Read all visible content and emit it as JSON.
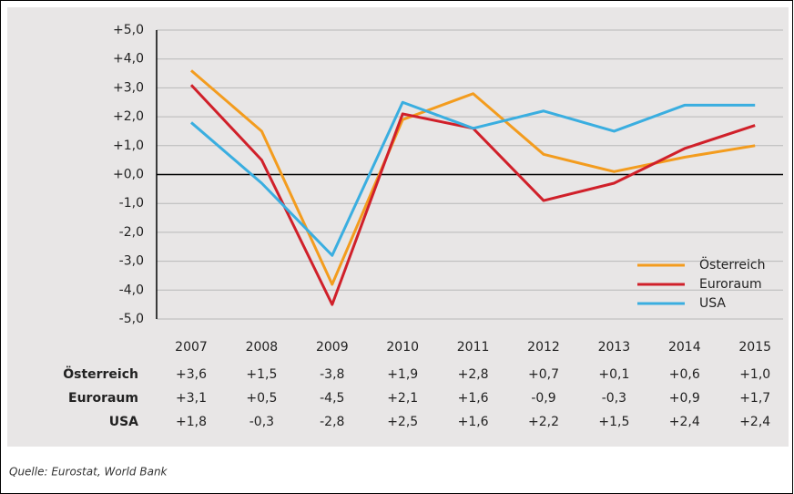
{
  "chart_data": {
    "type": "line",
    "categories": [
      "2007",
      "2008",
      "2009",
      "2010",
      "2011",
      "2012",
      "2013",
      "2014",
      "2015"
    ],
    "series": [
      {
        "name": "Österreich",
        "color": "#f39c1e",
        "values": [
          3.6,
          1.5,
          -3.8,
          1.9,
          2.8,
          0.7,
          0.1,
          0.6,
          1.0
        ],
        "value_labels": [
          "+3,6",
          "+1,5",
          "-3,8",
          "+1,9",
          "+2,8",
          "+0,7",
          "+0,1",
          "+0,6",
          "+1,0"
        ]
      },
      {
        "name": "Euroraum",
        "color": "#d0202a",
        "values": [
          3.1,
          0.5,
          -4.5,
          2.1,
          1.6,
          -0.9,
          -0.3,
          0.9,
          1.7
        ],
        "value_labels": [
          "+3,1",
          "+0,5",
          "-4,5",
          "+2,1",
          "+1,6",
          "-0,9",
          "-0,3",
          "+0,9",
          "+1,7"
        ]
      },
      {
        "name": "USA",
        "color": "#3aaee0",
        "values": [
          1.8,
          -0.3,
          -2.8,
          2.5,
          1.6,
          2.2,
          1.5,
          2.4,
          2.4
        ],
        "value_labels": [
          "+1,8",
          "-0,3",
          "-2,8",
          "+2,5",
          "+1,6",
          "+2,2",
          "+1,5",
          "+2,4",
          "+2,4"
        ]
      }
    ],
    "ylim": [
      -5,
      5
    ],
    "yticks": [
      {
        "value": 5,
        "label": "+5,0"
      },
      {
        "value": 4,
        "label": "+4,0"
      },
      {
        "value": 3,
        "label": "+3,0"
      },
      {
        "value": 2,
        "label": "+2,0"
      },
      {
        "value": 1,
        "label": "+1,0"
      },
      {
        "value": 0,
        "label": "+0,0"
      },
      {
        "value": -1,
        "label": "-1,0"
      },
      {
        "value": -2,
        "label": "-2,0"
      },
      {
        "value": -3,
        "label": "-3,0"
      },
      {
        "value": -4,
        "label": "-4,0"
      },
      {
        "value": -5,
        "label": "-5,0"
      }
    ],
    "grid": true,
    "legend": "lower right",
    "source": "Quelle: Eurostat, World Bank"
  }
}
